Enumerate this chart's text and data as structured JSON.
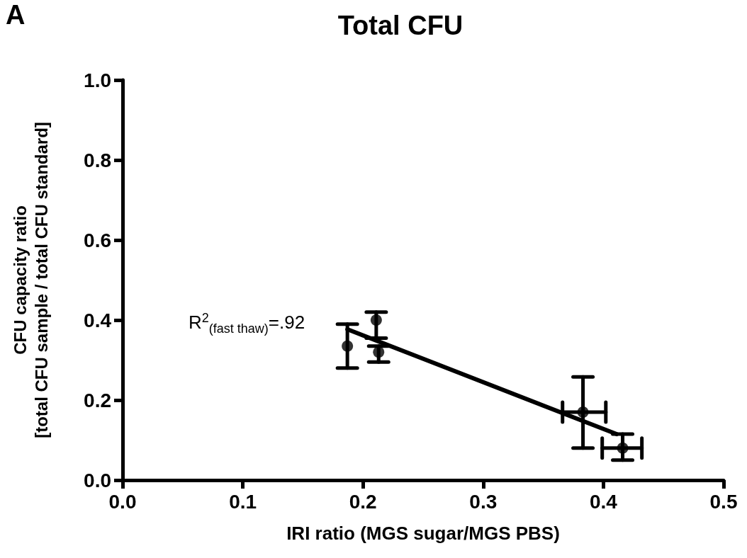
{
  "chart_data": {
    "type": "scatter",
    "title": "Total CFU",
    "xlabel": "IRI ratio (MGS sugar/MGS PBS)",
    "ylabel": "CFU capacity ratio\n[total CFU sample / total CFU standard]",
    "annotations": [
      "A",
      "R$^{2}$$_{(fast thaw)}$=.92"
    ],
    "series": [
      {
        "color": "#000000",
        "x": [
          0.187,
          0.211,
          0.213,
          0.383,
          0.416
        ],
        "values": [
          0.335,
          0.4,
          0.32,
          0.17,
          0.08
        ],
        "errors": [
          [
            0.28,
            0.39
          ],
          [
            0.355,
            0.42
          ],
          [
            0.295,
            0.335
          ],
          [
            0.08,
            0.258
          ],
          [
            0.05,
            0.115
          ]
        ],
        "xerrors": [
          null,
          null,
          null,
          [
            0.366,
            0.402
          ],
          [
            0.399,
            0.432
          ]
        ]
      },
      {
        "type": "line",
        "color": "#000000",
        "x": [
          0.187,
          0.411
        ],
        "values": [
          0.377,
          0.115
        ],
        "marker": "none",
        "line_style": "solid"
      }
    ],
    "marker": "circle",
    "grid": false,
    "xlim": [
      0,
      0.5
    ],
    "xticks": [
      {
        "value": 0,
        "label": "0.0"
      },
      0.1,
      0.2,
      0.3,
      0.4,
      0.5
    ],
    "ylim": [
      0,
      1
    ],
    "yticks": [
      {
        "value": 0,
        "label": "0.0"
      },
      0.2,
      0.4,
      0.6,
      0.8,
      {
        "value": 1,
        "label": "1.0"
      }
    ]
  }
}
